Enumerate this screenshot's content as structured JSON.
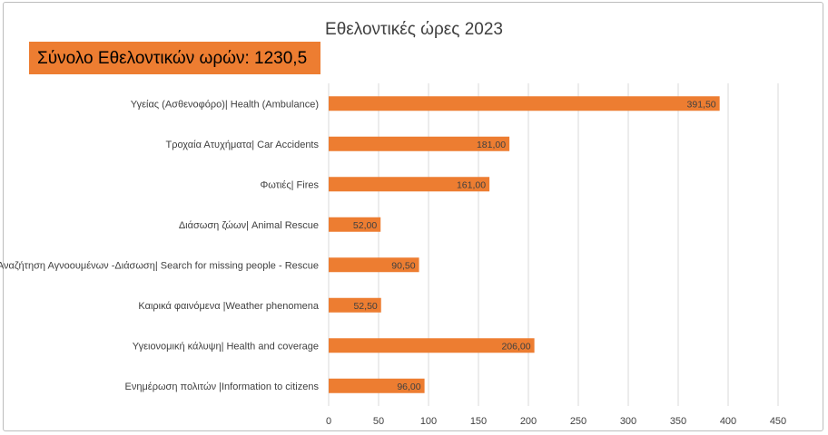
{
  "chart_data": {
    "type": "bar",
    "orientation": "horizontal",
    "title": "Εθελοντικές ώρες 2023",
    "total_label": "Σύνολο Εθελοντικών ωρών: 1230,5",
    "categories": [
      "Υγείας (Ασθενοφόρο)| Health (Ambulance)",
      "Τροχαία Ατυχήματα| Car Accidents",
      "Φωτιές| Fires",
      "Διάσωση ζώων| Animal Rescue",
      "Αναζήτηση Αγνοουμένων -Διάσωση| Search for missing people - Rescue",
      "Καιρικά φαινόμενα |Weather phenomena",
      "Υγειονομική κάλυψη| Health and coverage",
      "Ενημέρωση πολιτών |Information to citizens"
    ],
    "values": [
      391.5,
      181,
      161,
      52,
      90.5,
      52.5,
      206,
      96
    ],
    "value_labels": [
      "391,50",
      "181,00",
      "161,00",
      "52,00",
      "90,50",
      "52,50",
      "206,00",
      "96,00"
    ],
    "xlim": [
      0,
      450
    ],
    "xticks": [
      0,
      50,
      100,
      150,
      200,
      250,
      300,
      350,
      400,
      450
    ],
    "grid": true,
    "bar_color": "#ED7D31",
    "grid_color": "#d9d9d9"
  }
}
